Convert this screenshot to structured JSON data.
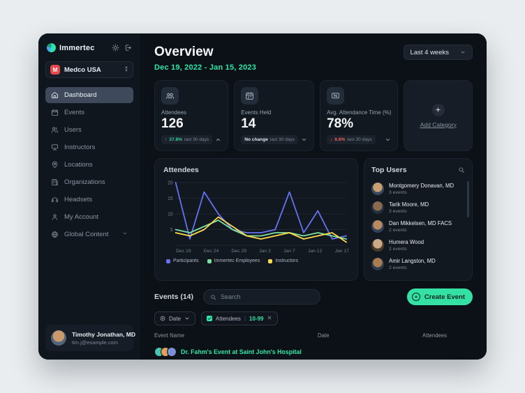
{
  "window": {
    "brand": "Immertec",
    "workspace": {
      "name": "Medco USA",
      "badge_letter": "M"
    }
  },
  "sidebar": {
    "items": [
      {
        "label": "Dashboard"
      },
      {
        "label": "Events"
      },
      {
        "label": "Users"
      },
      {
        "label": "Instructors"
      },
      {
        "label": "Locations"
      },
      {
        "label": "Organizations"
      },
      {
        "label": "Headsets"
      },
      {
        "label": "My Account"
      },
      {
        "label": "Global Content"
      }
    ],
    "profile": {
      "name": "Timothy Jonathan, MD",
      "email": "tim.j@example.com"
    }
  },
  "header": {
    "title": "Overview",
    "date_range": "Dec 19, 2022 -  Jan 15, 2023",
    "period": "Last 4 weeks"
  },
  "stats": [
    {
      "label": "Attendees",
      "value": "126",
      "delta": "37.8%",
      "suffix": "last 30 days",
      "trend": "up"
    },
    {
      "label": "Events Held",
      "value": "14",
      "delta": "No change",
      "suffix": "last 30 days",
      "trend": "flat"
    },
    {
      "label": "Avg. Attendance Time (%)",
      "value": "78%",
      "delta": "6.6%",
      "suffix": "last 30 days",
      "trend": "down"
    }
  ],
  "add_category": {
    "label": "Add Category"
  },
  "chart_data": {
    "type": "line",
    "title": "Attendees",
    "x_labels": [
      "Dec 19",
      "Dec 24",
      "Dec 29",
      "Jan 2",
      "Jan 7",
      "Jan 12",
      "Jan 17"
    ],
    "ylim": [
      0,
      20
    ],
    "yticks": [
      5,
      10,
      15,
      20
    ],
    "grid": true,
    "legend_position": "bottom",
    "series": [
      {
        "name": "Participants",
        "color": "#6674f4",
        "values": [
          20,
          2,
          17,
          10,
          5,
          4,
          4,
          5,
          17,
          4,
          11,
          2,
          3
        ]
      },
      {
        "name": "Immertec Employees",
        "color": "#7ee0a0",
        "values": [
          5,
          4,
          6,
          8,
          5,
          3,
          3,
          4,
          4,
          3,
          4,
          3,
          2
        ]
      },
      {
        "name": "Instructors",
        "color": "#ffd94d",
        "values": [
          4,
          3,
          5,
          9,
          6,
          3,
          2,
          3,
          4,
          2,
          3,
          4,
          1
        ]
      }
    ]
  },
  "top_users": {
    "title": "Top Users",
    "users": [
      {
        "name": "Montgomery Donavan, MD",
        "events": "3 events"
      },
      {
        "name": "Tarik Moore, MD",
        "events": "3 events"
      },
      {
        "name": "Dan Mikkelsen, MD FACS",
        "events": "2 events"
      },
      {
        "name": "Humera Wood",
        "events": "2 events"
      },
      {
        "name": "Amir Langston, MD",
        "events": "2 events"
      }
    ]
  },
  "events": {
    "title": "Events (14)",
    "search_placeholder": "Search",
    "create_label": "Create Event",
    "filter_date": {
      "label": "Date"
    },
    "filter_attendees": {
      "label": "Attendees",
      "value": "10-99"
    },
    "columns": {
      "name": "Event Name",
      "date": "Date",
      "attendees": "Attendees"
    },
    "rows": [
      {
        "name": "Dr. Fahm's Event at Saint John's Hospital"
      }
    ]
  },
  "colors": {
    "accent": "#2ee6a8",
    "positive": "#34d399",
    "negative": "#f0635c",
    "participants": "#6674f4",
    "employees": "#7ee0a0",
    "instructors": "#ffd94d"
  }
}
